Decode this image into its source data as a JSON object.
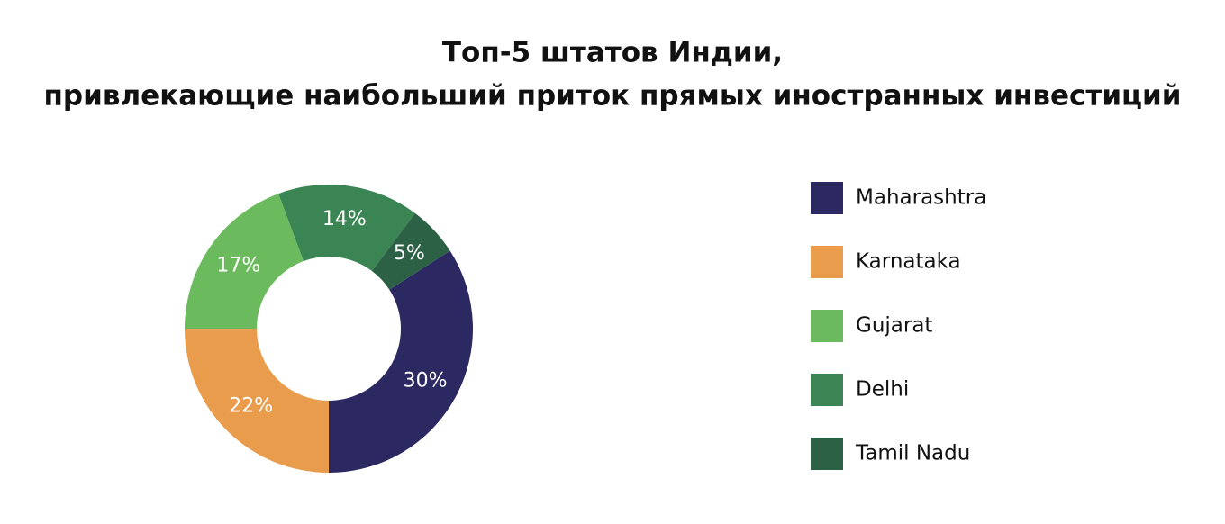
{
  "chart_data": {
    "type": "donut",
    "title": [
      "Топ-5 штатов Индии,",
      "привлекающие наибольший приток прямых иностранных инвестиций"
    ],
    "categories": [
      "Maharashtra",
      "Karnataka",
      "Gujarat",
      "Delhi",
      "Tamil Nadu"
    ],
    "values": [
      30,
      22,
      17,
      14,
      5
    ],
    "value_labels": [
      "30%",
      "22%",
      "17%",
      "14%",
      "5%"
    ],
    "colors": [
      "#2b2862",
      "#e99c4b",
      "#6bbb5e",
      "#3a8553",
      "#2c6146"
    ],
    "legend": "right"
  }
}
